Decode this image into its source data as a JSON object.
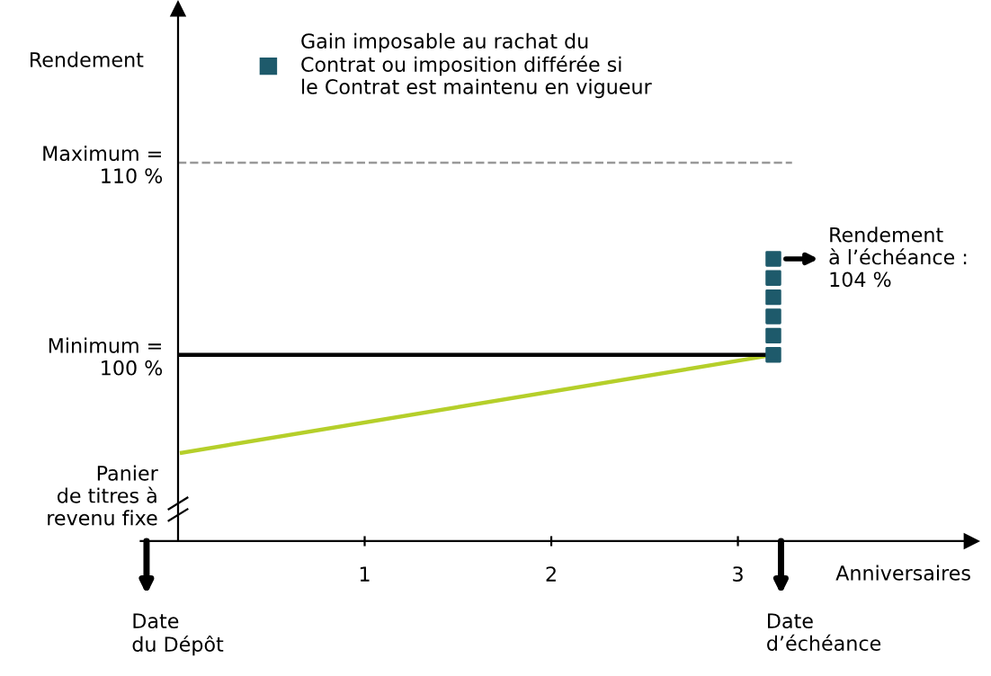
{
  "chart_data": {
    "type": "line",
    "ylabel": "Rendement",
    "xlabel": "Anniversaires",
    "xlim": [
      -0.2,
      4.25
    ],
    "xticks": [
      1,
      2,
      3
    ],
    "ylim": [
      90.3,
      118
    ],
    "yticks": [
      {
        "value": 100,
        "label": "Minimum =\n100 %"
      },
      {
        "value": 110,
        "label": "Maximum =\n110 %"
      }
    ],
    "grid": false,
    "legend": "top left",
    "series": [
      {
        "name": "Panier\nde titres à\nrevenu fixe",
        "color": "#b5cf2a",
        "x": [
          0.02,
          3.19
        ],
        "values": [
          94.9,
          100
        ]
      },
      {
        "color": "#000000",
        "x": [
          0.01,
          3.19
        ],
        "values": [
          100,
          100
        ]
      },
      {
        "name": "Gain imposable au rachat du\nContrat ou imposition différée si\nle Contrat est maintenu en vigueur",
        "type": "scatter",
        "marker": "square",
        "color": "#1e5a6b",
        "x": [
          3.19,
          3.19,
          3.19,
          3.19,
          3.19,
          3.19
        ],
        "values": [
          100,
          101,
          102,
          103,
          104,
          105
        ]
      }
    ],
    "ref_lines": [
      {
        "axis": "y",
        "value": 110,
        "label": null,
        "color": "#999999",
        "line_style": "dashed"
      }
    ],
    "annotations": [
      {
        "text": "Rendement\nà l’échéance :\n104 %",
        "x": 3.19,
        "y": 105
      },
      "Date\ndu Dépôt",
      "Date\nd’échéance"
    ]
  }
}
